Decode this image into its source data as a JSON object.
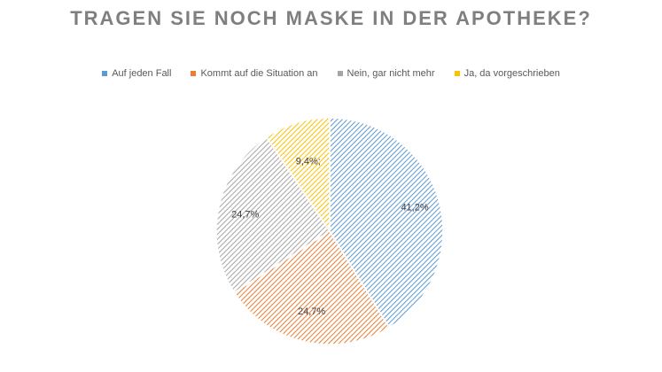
{
  "chart_data": {
    "type": "pie",
    "title": "TRAGEN SIE NOCH MASKE IN DER APOTHEKE?",
    "legend_position": "top",
    "categories": [
      "Auf jeden Fall",
      "Kommt auf die Situation an",
      "Nein, gar nicht mehr",
      "Ja, da vorgeschrieben"
    ],
    "values": [
      41.2,
      24.7,
      24.7,
      9.4
    ],
    "labels": [
      "41,2%",
      "24,7%",
      "24,7%",
      "9,4%;"
    ],
    "colors": [
      "#5b9bd5",
      "#ed7d31",
      "#a5a5a5",
      "#ffc000"
    ]
  }
}
